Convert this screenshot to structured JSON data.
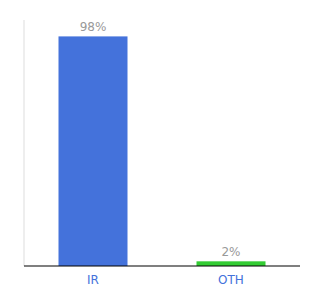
{
  "chart_data": {
    "type": "bar",
    "categories": [
      "IR",
      "OTH"
    ],
    "values": [
      98,
      2
    ],
    "value_labels": [
      "98%",
      "2%"
    ],
    "colors": [
      "#4472db",
      "#33cc33"
    ],
    "ylim": [
      0,
      105
    ],
    "data_labels": true,
    "tick_labels": "x",
    "grid": false
  }
}
